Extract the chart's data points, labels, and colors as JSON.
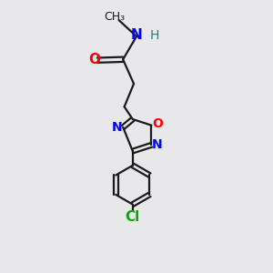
{
  "bg_color": "#e8e8ea",
  "bond_color": "#1a1a1a",
  "N_color": "#0000ff",
  "O_color": "#ff0000",
  "Cl_color": "#00aa00",
  "H_color": "#008b8b",
  "line_width": 1.6,
  "font_size": 10,
  "fig_size": [
    3.0,
    3.0
  ],
  "dpi": 100,
  "xlim": [
    0,
    10
  ],
  "ylim": [
    0,
    10
  ]
}
